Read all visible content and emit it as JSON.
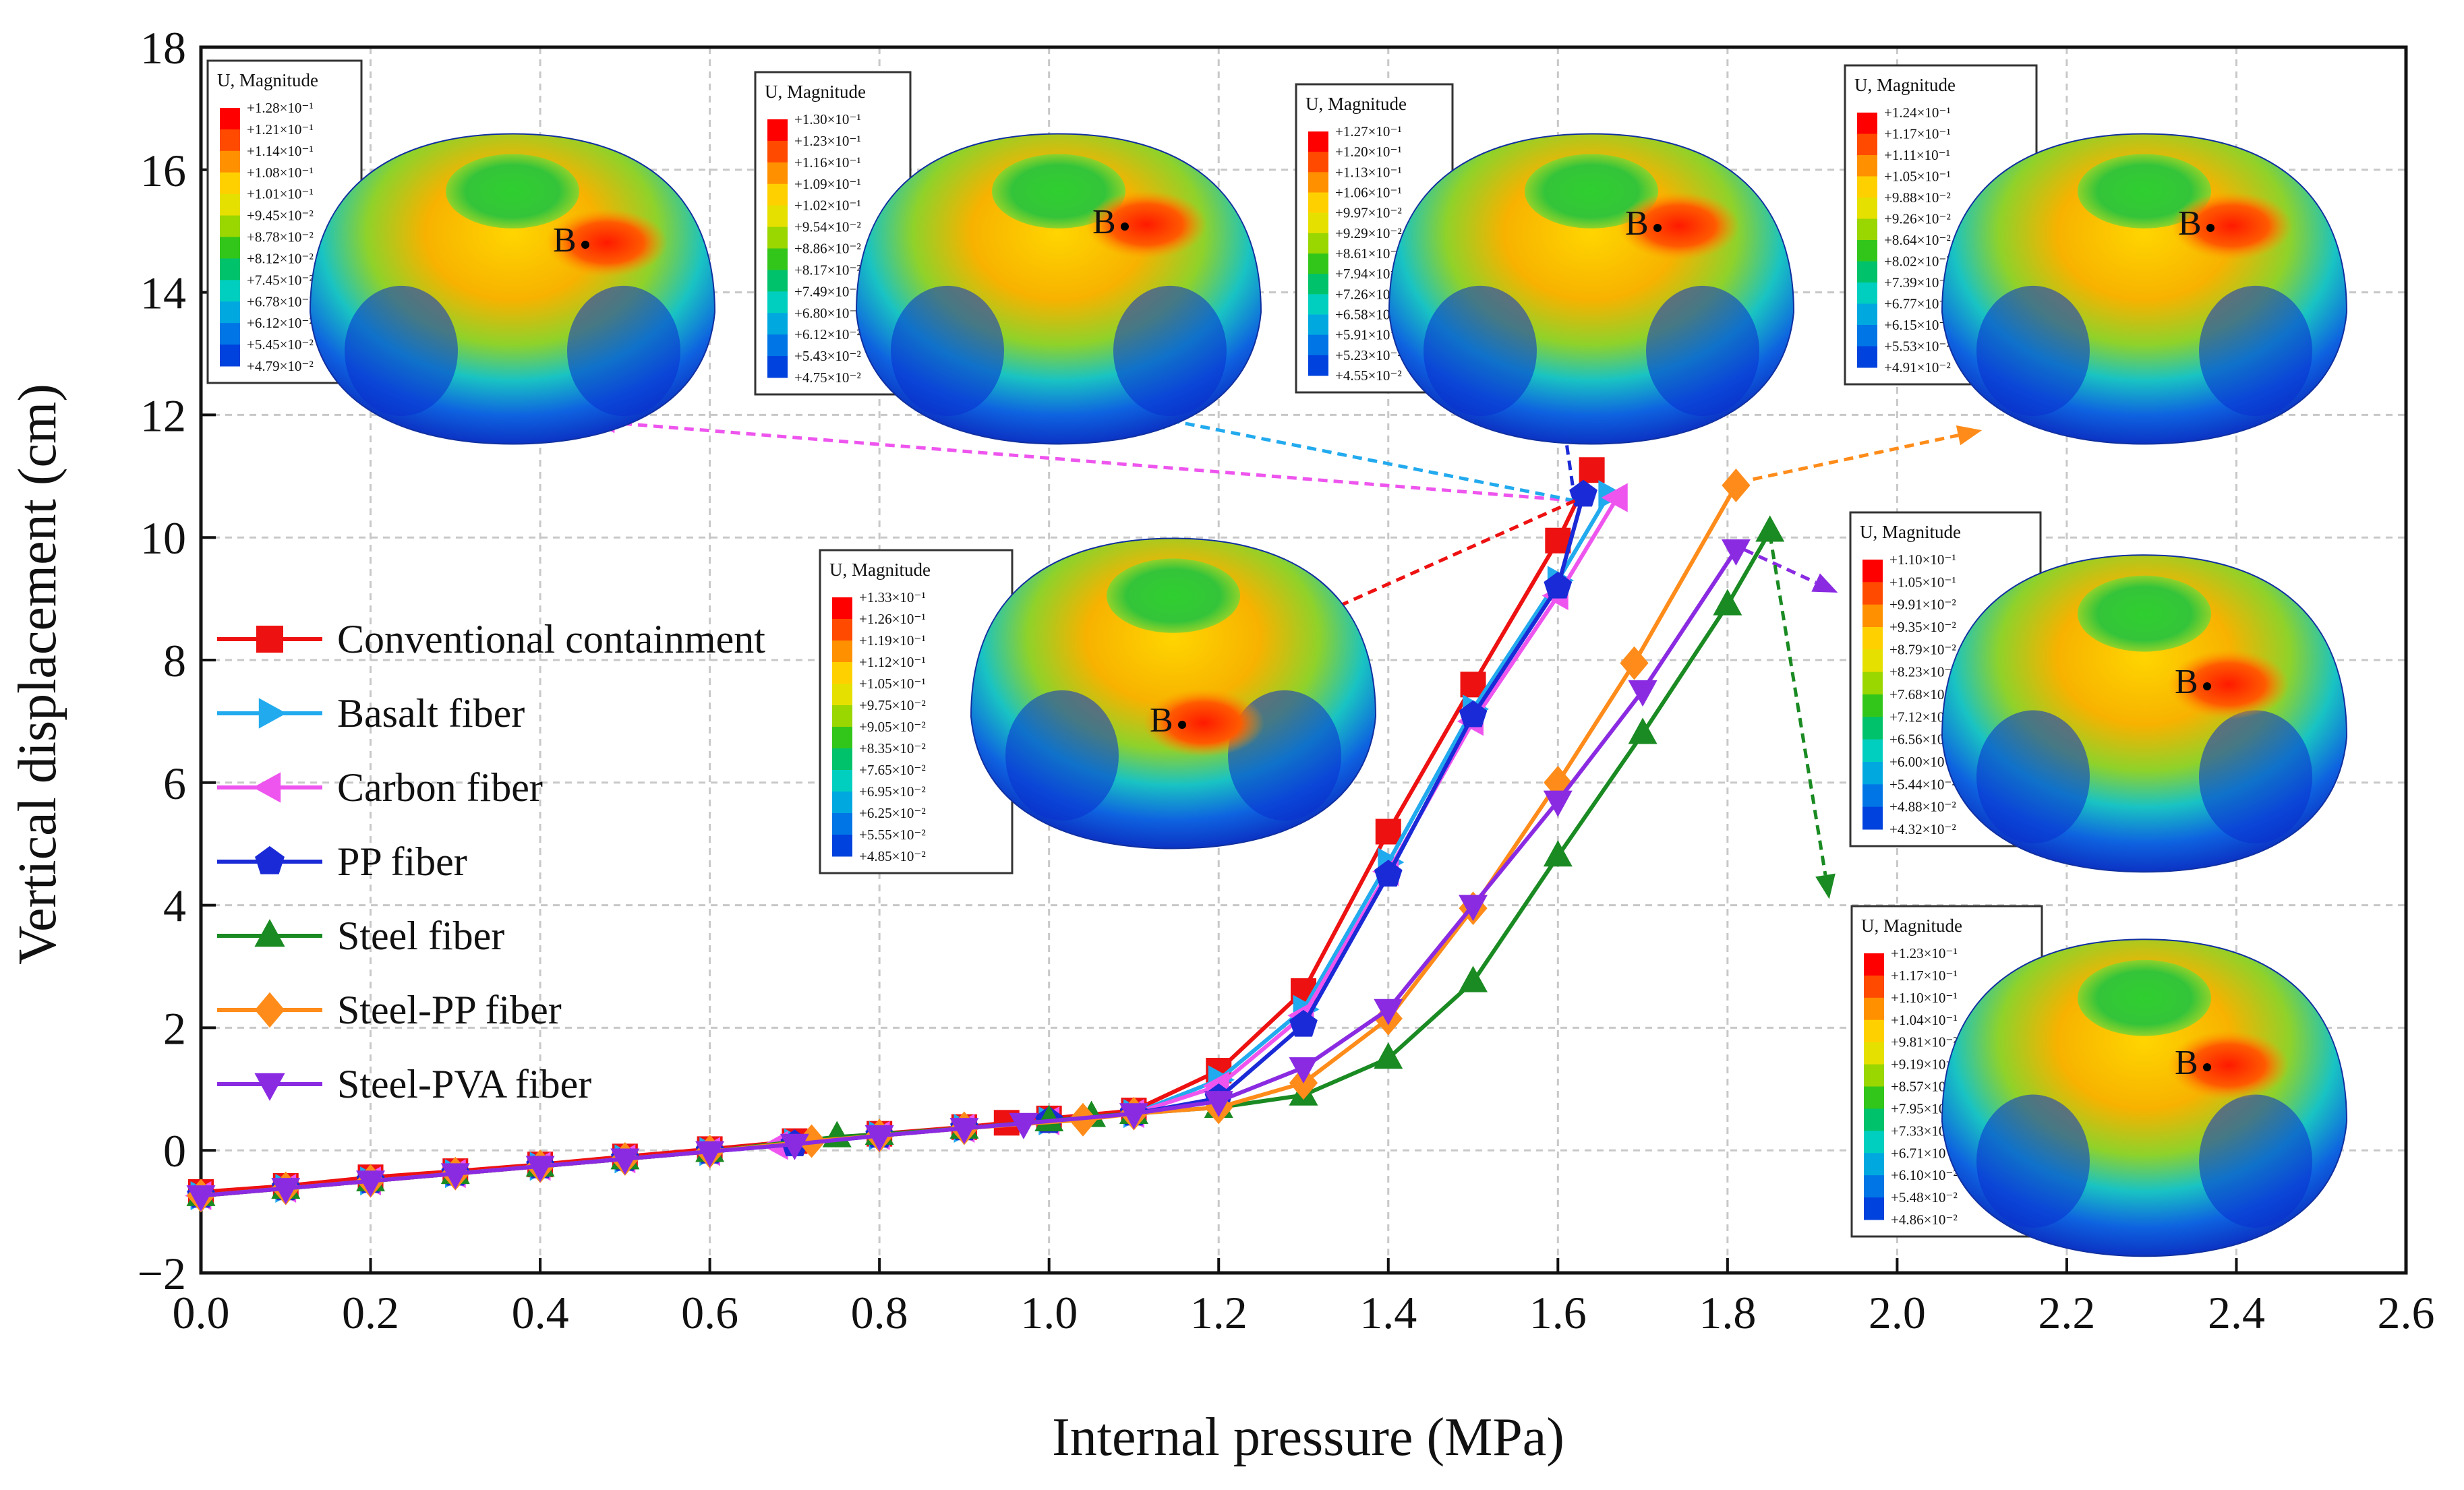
{
  "chart_data": {
    "type": "line",
    "title": "",
    "xlabel": "Internal pressure (MPa)",
    "ylabel": "Vertical displacement (cm)",
    "xlim": [
      0.0,
      2.6
    ],
    "ylim": [
      -2,
      18
    ],
    "xticks": [
      "0.0",
      "0.2",
      "0.4",
      "0.6",
      "0.8",
      "1.0",
      "1.2",
      "1.4",
      "1.6",
      "1.8",
      "2.0",
      "2.2",
      "2.4",
      "2.6"
    ],
    "yticks": [
      "−2",
      "0",
      "2",
      "4",
      "6",
      "8",
      "10",
      "12",
      "14",
      "16",
      "18"
    ],
    "grid": true,
    "legend_position": "left",
    "series": [
      {
        "name": "Conventional containment",
        "color": "#ee1111",
        "marker": "square",
        "x": [
          0,
          0.1,
          0.2,
          0.3,
          0.4,
          0.5,
          0.6,
          0.7,
          0.8,
          0.9,
          0.95,
          1.0,
          1.1,
          1.2,
          1.3,
          1.4,
          1.5,
          1.6,
          1.64
        ],
        "y": [
          -0.68,
          -0.58,
          -0.44,
          -0.34,
          -0.23,
          -0.1,
          0.02,
          0.15,
          0.27,
          0.38,
          0.45,
          0.52,
          0.65,
          1.3,
          2.6,
          5.2,
          7.6,
          9.95,
          11.1
        ]
      },
      {
        "name": "Basalt fiber",
        "color": "#22aaee",
        "marker": "triangle-right",
        "x": [
          0,
          0.1,
          0.2,
          0.3,
          0.4,
          0.5,
          0.6,
          0.7,
          0.8,
          0.9,
          1.0,
          1.1,
          1.2,
          1.3,
          1.4,
          1.5,
          1.6,
          1.66
        ],
        "y": [
          -0.74,
          -0.62,
          -0.5,
          -0.38,
          -0.26,
          -0.14,
          -0.02,
          0.12,
          0.24,
          0.36,
          0.48,
          0.6,
          1.15,
          2.3,
          4.7,
          7.2,
          9.3,
          10.7
        ]
      },
      {
        "name": "Carbon fiber",
        "color": "#ee55ee",
        "marker": "triangle-left",
        "x": [
          0,
          0.1,
          0.2,
          0.3,
          0.4,
          0.5,
          0.6,
          0.68,
          0.8,
          0.9,
          1.0,
          1.1,
          1.2,
          1.3,
          1.4,
          1.5,
          1.6,
          1.67
        ],
        "y": [
          -0.74,
          -0.62,
          -0.5,
          -0.38,
          -0.26,
          -0.14,
          -0.02,
          0.08,
          0.24,
          0.36,
          0.48,
          0.6,
          1.05,
          2.2,
          4.55,
          7.0,
          9.05,
          10.65
        ]
      },
      {
        "name": "PP fiber",
        "color": "#1a2ad6",
        "marker": "pentagon",
        "x": [
          0,
          0.1,
          0.2,
          0.3,
          0.4,
          0.5,
          0.6,
          0.7,
          0.8,
          0.9,
          1.0,
          1.1,
          1.2,
          1.3,
          1.4,
          1.5,
          1.6,
          1.63
        ],
        "y": [
          -0.74,
          -0.62,
          -0.5,
          -0.38,
          -0.26,
          -0.14,
          -0.02,
          0.1,
          0.24,
          0.36,
          0.48,
          0.6,
          0.85,
          2.05,
          4.5,
          7.1,
          9.2,
          10.7
        ]
      },
      {
        "name": "Steel fiber",
        "color": "#1a8a22",
        "marker": "triangle-up",
        "x": [
          0,
          0.1,
          0.2,
          0.3,
          0.4,
          0.5,
          0.6,
          0.75,
          0.8,
          0.9,
          1.0,
          1.05,
          1.1,
          1.2,
          1.3,
          1.4,
          1.5,
          1.6,
          1.7,
          1.8,
          1.85
        ],
        "y": [
          -0.74,
          -0.62,
          -0.5,
          -0.38,
          -0.26,
          -0.14,
          -0.02,
          0.22,
          0.26,
          0.36,
          0.48,
          0.55,
          0.6,
          0.7,
          0.9,
          1.5,
          2.75,
          4.8,
          6.8,
          8.9,
          10.1
        ]
      },
      {
        "name": "Steel-PP fiber",
        "color": "#ff8c1a",
        "marker": "diamond",
        "x": [
          0,
          0.1,
          0.2,
          0.3,
          0.4,
          0.5,
          0.6,
          0.72,
          0.8,
          0.9,
          1.04,
          1.1,
          1.2,
          1.3,
          1.4,
          1.5,
          1.6,
          1.69,
          1.81
        ],
        "y": [
          -0.74,
          -0.62,
          -0.5,
          -0.38,
          -0.26,
          -0.14,
          -0.02,
          0.15,
          0.24,
          0.36,
          0.5,
          0.6,
          0.7,
          1.1,
          2.15,
          3.95,
          6.0,
          7.95,
          10.85
        ]
      },
      {
        "name": "Steel-PVA fiber",
        "color": "#8a2be2",
        "marker": "triangle-down",
        "x": [
          0,
          0.1,
          0.2,
          0.3,
          0.4,
          0.5,
          0.6,
          0.7,
          0.8,
          0.9,
          0.97,
          1.1,
          1.2,
          1.3,
          1.4,
          1.5,
          1.6,
          1.7,
          1.81
        ],
        "y": [
          -0.74,
          -0.62,
          -0.5,
          -0.38,
          -0.26,
          -0.14,
          -0.02,
          0.1,
          0.24,
          0.36,
          0.44,
          0.6,
          0.8,
          1.35,
          2.3,
          4.0,
          5.7,
          7.5,
          9.8
        ]
      }
    ],
    "annotations": [
      {
        "series": "Carbon fiber",
        "point": [
          1.62,
          10.6
        ],
        "target": [
          0.46,
          11.9
        ],
        "color": "#ee55ee"
      },
      {
        "series": "Basalt fiber",
        "point": [
          1.62,
          10.6
        ],
        "target": [
          1.11,
          12.0
        ],
        "color": "#22aaee"
      },
      {
        "series": "PP fiber",
        "point": [
          1.62,
          10.6
        ],
        "target": [
          1.6,
          12.5
        ],
        "color": "#1a2ad6"
      },
      {
        "series": "Conventional containment",
        "point": [
          1.62,
          10.6
        ],
        "target": [
          1.28,
          8.5
        ],
        "color": "#ee1111"
      },
      {
        "series": "Steel-PP fiber",
        "point": [
          1.83,
          10.95
        ],
        "target": [
          2.1,
          11.75
        ],
        "color": "#ff8c1a"
      },
      {
        "series": "Steel-PVA fiber",
        "point": [
          1.82,
          9.8
        ],
        "target": [
          1.93,
          9.1
        ],
        "color": "#8a2be2"
      },
      {
        "series": "Steel fiber",
        "point": [
          1.85,
          10.05
        ],
        "target": [
          1.92,
          4.1
        ],
        "color": "#1a8a22"
      }
    ]
  },
  "contours": [
    {
      "id": "carbon",
      "title": "U, Magnitude",
      "labels": [
        "+1.28×10⁻¹",
        "+1.21×10⁻¹",
        "+1.14×10⁻¹",
        "+1.08×10⁻¹",
        "+1.01×10⁻¹",
        "+9.45×10⁻²",
        "+8.78×10⁻²",
        "+8.12×10⁻²",
        "+7.45×10⁻²",
        "+6.78×10⁻²",
        "+6.12×10⁻²",
        "+5.45×10⁻²",
        "+4.79×10⁻²"
      ],
      "point_label": "B"
    },
    {
      "id": "basalt",
      "title": "U, Magnitude",
      "labels": [
        "+1.30×10⁻¹",
        "+1.23×10⁻¹",
        "+1.16×10⁻¹",
        "+1.09×10⁻¹",
        "+1.02×10⁻¹",
        "+9.54×10⁻²",
        "+8.86×10⁻²",
        "+8.17×10⁻²",
        "+7.49×10⁻²",
        "+6.80×10⁻²",
        "+6.12×10⁻²",
        "+5.43×10⁻²",
        "+4.75×10⁻²"
      ],
      "point_label": "B"
    },
    {
      "id": "pp",
      "title": "U, Magnitude",
      "labels": [
        "+1.27×10⁻¹",
        "+1.20×10⁻¹",
        "+1.13×10⁻¹",
        "+1.06×10⁻¹",
        "+9.97×10⁻²",
        "+9.29×10⁻²",
        "+8.61×10⁻²",
        "+7.94×10⁻²",
        "+7.26×10⁻²",
        "+6.58×10⁻²",
        "+5.91×10⁻²",
        "+5.23×10⁻²",
        "+4.55×10⁻²"
      ],
      "point_label": "B"
    },
    {
      "id": "steelpp",
      "title": "U, Magnitude",
      "labels": [
        "+1.24×10⁻¹",
        "+1.17×10⁻¹",
        "+1.11×10⁻¹",
        "+1.05×10⁻¹",
        "+9.88×10⁻²",
        "+9.26×10⁻²",
        "+8.64×10⁻²",
        "+8.02×10⁻²",
        "+7.39×10⁻²",
        "+6.77×10⁻²",
        "+6.15×10⁻²",
        "+5.53×10⁻²",
        "+4.91×10⁻²"
      ],
      "point_label": "B"
    },
    {
      "id": "conventional",
      "title": "U, Magnitude",
      "labels": [
        "+1.33×10⁻¹",
        "+1.26×10⁻¹",
        "+1.19×10⁻¹",
        "+1.12×10⁻¹",
        "+1.05×10⁻¹",
        "+9.75×10⁻²",
        "+9.05×10⁻²",
        "+8.35×10⁻²",
        "+7.65×10⁻²",
        "+6.95×10⁻²",
        "+6.25×10⁻²",
        "+5.55×10⁻²",
        "+4.85×10⁻²"
      ],
      "point_label": "B"
    },
    {
      "id": "steelpva",
      "title": "U, Magnitude",
      "labels": [
        "+1.10×10⁻¹",
        "+1.05×10⁻¹",
        "+9.91×10⁻²",
        "+9.35×10⁻²",
        "+8.79×10⁻²",
        "+8.23×10⁻²",
        "+7.68×10⁻²",
        "+7.12×10⁻²",
        "+6.56×10⁻²",
        "+6.00×10⁻²",
        "+5.44×10⁻²",
        "+4.88×10⁻²",
        "+4.32×10⁻²"
      ],
      "point_label": "B"
    },
    {
      "id": "steel",
      "title": "U, Magnitude",
      "labels": [
        "+1.23×10⁻¹",
        "+1.17×10⁻¹",
        "+1.10×10⁻¹",
        "+1.04×10⁻¹",
        "+9.81×10⁻²",
        "+9.19×10⁻²",
        "+8.57×10⁻²",
        "+7.95×10⁻²",
        "+7.33×10⁻²",
        "+6.71×10⁻²",
        "+6.10×10⁻²",
        "+5.48×10⁻²",
        "+4.86×10⁻²"
      ],
      "point_label": "B"
    }
  ],
  "colorbar_colors": [
    "#ff0000",
    "#ff4a00",
    "#ff9000",
    "#ffd000",
    "#e6e000",
    "#9ad600",
    "#33c61a",
    "#00c26a",
    "#00cfc0",
    "#00a8e0",
    "#0075e6",
    "#0042dd",
    "#0010cc"
  ]
}
